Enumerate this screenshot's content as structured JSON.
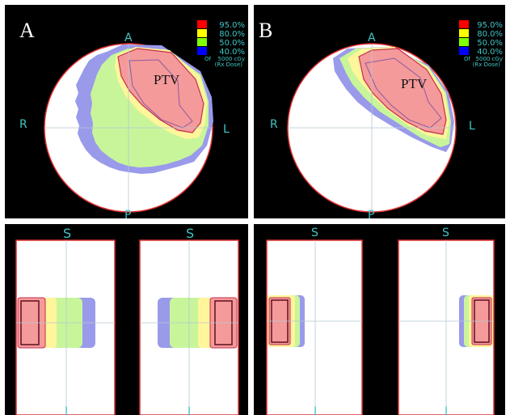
{
  "panels": [
    {
      "letter": "A",
      "ptv_label": "PTV",
      "orientation": {
        "anterior": "A",
        "posterior": "P",
        "right": "R",
        "left": "L",
        "superior": "S",
        "inferior": "I"
      },
      "legend": {
        "levels": [
          {
            "label": "95.0%",
            "color": "#ff0000"
          },
          {
            "label": "80.0%",
            "color": "#ffff00"
          },
          {
            "label": "50.0%",
            "color": "#80ff00"
          },
          {
            "label": "40.0%",
            "color": "#0000ff"
          }
        ],
        "of_label": "Of",
        "dose_label": "5000 cGy",
        "rx_label": "(Rx Dose)"
      }
    },
    {
      "letter": "B",
      "ptv_label": "PTV",
      "orientation": {
        "anterior": "A",
        "posterior": "P",
        "right": "R",
        "left": "L",
        "superior": "S",
        "inferior": "I"
      },
      "legend": {
        "levels": [
          {
            "label": "95.0%",
            "color": "#ff0000"
          },
          {
            "label": "80.0%",
            "color": "#ffff00"
          },
          {
            "label": "50.0%",
            "color": "#80ff00"
          },
          {
            "label": "40.0%",
            "color": "#0000ff"
          }
        ],
        "of_label": "Of",
        "dose_label": "5000 cGy",
        "rx_label": "(Rx Dose)"
      }
    }
  ],
  "colors": {
    "background": "#000000",
    "body": "#ffffff",
    "body_outline": "#e03030",
    "ptv_fill": "#f59a9a",
    "ptv_outline": "#c03050",
    "iso_80": "#fff59a",
    "iso_50": "#c8f59a",
    "iso_40": "#9a9aeb",
    "crosshair": "#b4c8d2",
    "orientation_text": "#3fc6c6"
  }
}
